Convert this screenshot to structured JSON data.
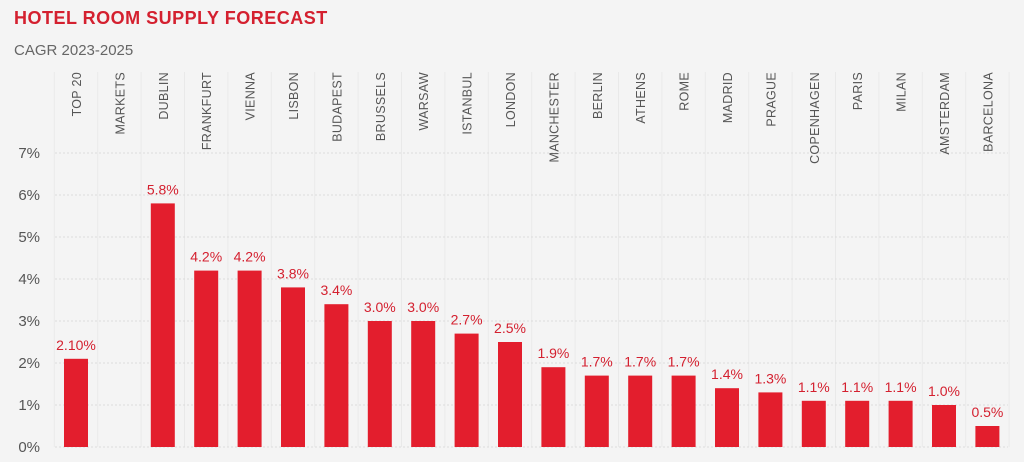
{
  "chart_data": {
    "type": "bar",
    "title": "HOTEL ROOM SUPPLY FORECAST",
    "subtitle": "CAGR 2023-2025",
    "categories": [
      "TOP 20 MARKETS",
      "DUBLIN",
      "FRANKFURT",
      "VIENNA",
      "LISBON",
      "BUDAPEST",
      "BRUSSELS",
      "WARSAW",
      "ISTANBUL",
      "LONDON",
      "MANCHESTER",
      "BERLIN",
      "ATHENS",
      "ROME",
      "MADRID",
      "PRAGUE",
      "COPENHAGEN",
      "PARIS",
      "MILAN",
      "AMSTERDAM",
      "BARCELONA"
    ],
    "category_label_lines": [
      [
        "TOP 20",
        "MARKETS"
      ],
      [
        "DUBLIN"
      ],
      [
        "FRANKFURT"
      ],
      [
        "VIENNA"
      ],
      [
        "LISBON"
      ],
      [
        "BUDAPEST"
      ],
      [
        "BRUSSELS"
      ],
      [
        "WARSAW"
      ],
      [
        "ISTANBUL"
      ],
      [
        "LONDON"
      ],
      [
        "MANCHESTER"
      ],
      [
        "BERLIN"
      ],
      [
        "ATHENS"
      ],
      [
        "ROME"
      ],
      [
        "MADRID"
      ],
      [
        "PRAGUE"
      ],
      [
        "COPENHAGEN"
      ],
      [
        "PARIS"
      ],
      [
        "MILAN"
      ],
      [
        "AMSTERDAM"
      ],
      [
        "BARCELONA"
      ]
    ],
    "values": [
      2.1,
      5.8,
      4.2,
      4.2,
      3.8,
      3.4,
      3.0,
      3.0,
      2.7,
      2.5,
      1.9,
      1.7,
      1.7,
      1.7,
      1.4,
      1.3,
      1.1,
      1.1,
      1.1,
      1.0,
      0.5
    ],
    "data_labels": [
      "2.10%",
      "5.8%",
      "4.2%",
      "4.2%",
      "3.8%",
      "3.4%",
      "3.0%",
      "3.0%",
      "2.7%",
      "2.5%",
      "1.9%",
      "1.7%",
      "1.7%",
      "1.7%",
      "1.4%",
      "1.3%",
      "1.1%",
      "1.1%",
      "1.1%",
      "1.0%",
      "0.5%"
    ],
    "y_ticks": [
      "0%",
      "1%",
      "2%",
      "3%",
      "4%",
      "5%",
      "6%",
      "7%"
    ],
    "ylim": [
      0,
      7
    ],
    "xlabel": "",
    "ylabel": "",
    "grid": true,
    "bar_color": "#e31e2d",
    "label_color": "#d4202f"
  }
}
